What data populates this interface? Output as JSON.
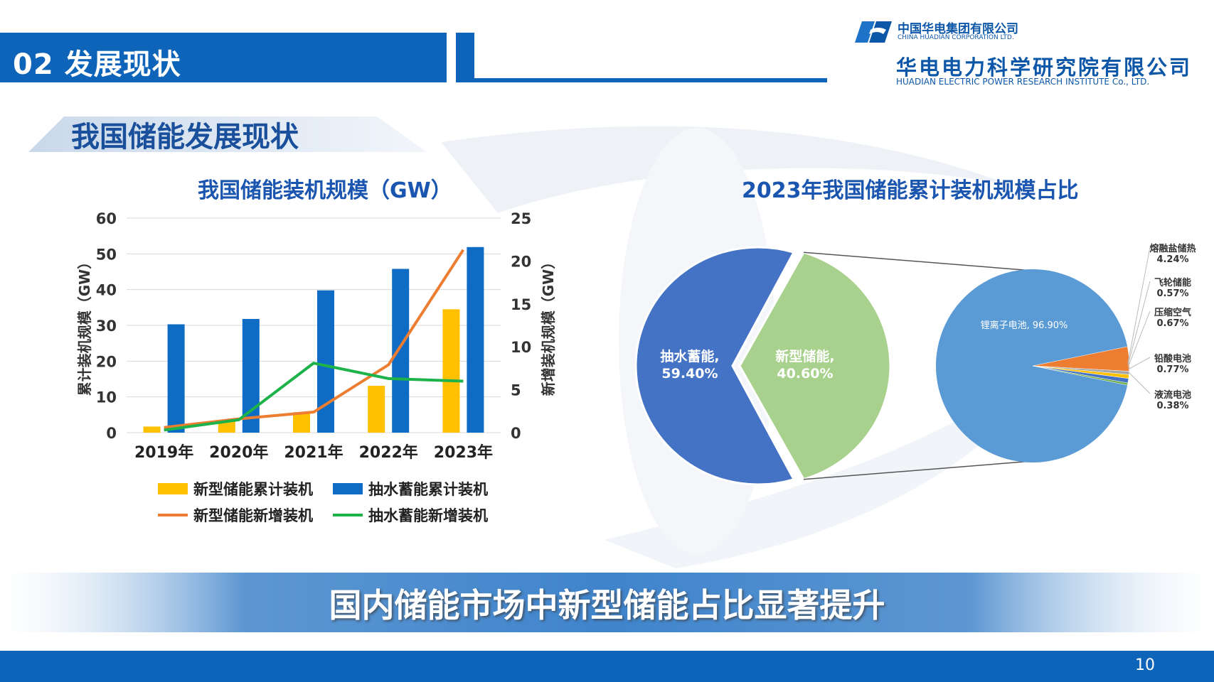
{
  "header": {
    "section_title": "02 发展现状"
  },
  "logo": {
    "company_cn": "中国华电集团有限公司",
    "company_en": "CHINA HUADIAN CORPORATION LTD.",
    "institute_cn": "华电电力科学研究院有限公司",
    "institute_en": "HUADIAN ELECTRIC POWER RESEARCH INSTITUTE Co., LTD."
  },
  "section": {
    "title": "我国储能发展现状"
  },
  "footer": {
    "conclusion": "国内储能市场中新型储能占比显著提升",
    "page_number": "10"
  },
  "colors": {
    "brand_blue": "#0e64b8",
    "title_blue": "#1a55b0",
    "new_storage_bar": "#ffc000",
    "pumped_bar": "#0e6cc4",
    "new_storage_line": "#ed7d31",
    "pumped_line": "#1db34a",
    "pie_pumped": "#4472c4",
    "pie_new": "#a9d18e",
    "pie_lithium": "#5b9bd5"
  },
  "chart_data": [
    {
      "type": "bar",
      "title": "我国储能装机规模（GW）",
      "categories": [
        "2019年",
        "2020年",
        "2021年",
        "2022年",
        "2023年"
      ],
      "ylabel": "累计装机规模（GW）",
      "y2label": "新增装机规模（GW）",
      "ylim": [
        0,
        60
      ],
      "y2lim": [
        0,
        25
      ],
      "yticks": [
        "0",
        "10",
        "20",
        "30",
        "40",
        "50",
        "60"
      ],
      "y2ticks": [
        "0",
        "5",
        "10",
        "15",
        "20",
        "25"
      ],
      "grid": true,
      "legend_position": "bottom",
      "series": [
        {
          "name": "新型储能累计装机",
          "kind": "bar",
          "axis": "left",
          "color": "#ffc000",
          "values": [
            1.7,
            3.3,
            5.7,
            13.1,
            34.5
          ]
        },
        {
          "name": "抽水蓄能累计装机",
          "kind": "bar",
          "axis": "left",
          "color": "#0e6cc4",
          "values": [
            30.3,
            31.8,
            39.8,
            45.8,
            51.9
          ]
        },
        {
          "name": "新型储能新增装机",
          "kind": "line",
          "axis": "right",
          "color": "#ed7d31",
          "values": [
            0.6,
            1.6,
            2.4,
            7.9,
            21.3
          ]
        },
        {
          "name": "抽水蓄能新增装机",
          "kind": "line",
          "axis": "right",
          "color": "#1db34a",
          "values": [
            0.3,
            1.5,
            8.1,
            6.3,
            6.0
          ]
        }
      ]
    },
    {
      "type": "pie",
      "title": "2023年我国储能累计装机规模占比",
      "slices": [
        {
          "label": "抽水蓄能,",
          "value": 59.4,
          "value_label": "59.40%",
          "color": "#4472c4"
        },
        {
          "label": "新型储能,",
          "value": 40.6,
          "value_label": "40.60%",
          "color": "#a9d18e"
        }
      ],
      "breakdown_of": "新型储能",
      "sub_slices": [
        {
          "label": "锂离子电池, 96.90%",
          "value": 96.9,
          "color": "#5b9bd5"
        },
        {
          "label": "熔融盐储热",
          "value": 4.24,
          "value_label": "4.24%",
          "color": "#ed7d31"
        },
        {
          "label": "飞轮储能",
          "value": 0.57,
          "value_label": "0.57%",
          "color": "#a5a5a5"
        },
        {
          "label": "压缩空气",
          "value": 0.67,
          "value_label": "0.67%",
          "color": "#ffc000"
        },
        {
          "label": "铅酸电池",
          "value": 0.77,
          "value_label": "0.77%",
          "color": "#4472c4"
        },
        {
          "label": "液流电池",
          "value": 0.38,
          "value_label": "0.38%",
          "color": "#70ad47"
        }
      ]
    }
  ]
}
